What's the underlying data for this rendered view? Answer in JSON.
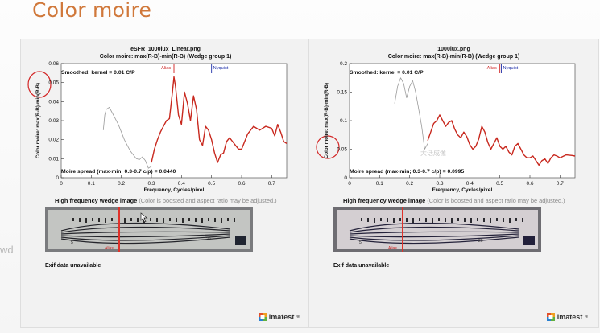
{
  "slide": {
    "title": "Color moire",
    "side_fragment": "wd"
  },
  "panels": [
    {
      "file": "eSFR_1000lux_Linear.png",
      "subtitle": "Color moire:  max(R-B)-min(R-B)  (Wedge group 1)",
      "smoothed": "Smoothed:  kernel = 0.01 C/P",
      "spread": "Moire spread (max-min; 0.3-0.7 c/p) = 0.0440",
      "alias_label": "Alias",
      "nyquist_label": "Nyquist",
      "wedge_title": "High frequency wedge image",
      "wedge_note": "(Color is boosted and aspect ratio may be adjusted.)",
      "wedge_alias": "Alias",
      "wedge_num_5": "5",
      "wedge_num_20": "20",
      "exif": "Exif data unavailable"
    },
    {
      "file": "1000lux.png",
      "subtitle": "Color moire:  max(R-B)-min(R-B)  (Wedge group 1)",
      "smoothed": "Smoothed:  kernel = 0.01 C/P",
      "spread": "Moire spread (max-min; 0.3-0.7 c/p) = 0.0995",
      "alias_label": "Alias",
      "nyquist_label": "Nyquist",
      "watermark": "大话成像",
      "wedge_title": "High frequency wedge image",
      "wedge_note": "(Color is boosted and aspect ratio may be adjusted.)",
      "wedge_alias": "Alias",
      "wedge_num_5": "5",
      "wedge_num_20": "20",
      "exif": "Exif data unavailable"
    }
  ],
  "logo": {
    "text": "imatest",
    "reg": "®"
  },
  "chart_data": [
    {
      "type": "line",
      "title": "eSFR_1000lux_Linear.png",
      "subtitle": "Color moire:  max(R-B)-min(R-B)  (Wedge group 1)",
      "xlabel": "Frequency, Cycles/pixel",
      "ylabel": "Color moire:  max(R-B)-min(R-B)",
      "xlim": [
        0,
        0.75
      ],
      "ylim": [
        0,
        0.06
      ],
      "xticks": [
        "0",
        "0.1",
        "0.2",
        "0.3",
        "0.4",
        "0.5",
        "0.6",
        "0.7"
      ],
      "yticks": [
        "0",
        "0.01",
        "0.02",
        "0.03",
        "0.04",
        "0.05",
        "0.06"
      ],
      "alias_x": 0.375,
      "nyquist_x": 0.5,
      "series": [
        {
          "name": "raw",
          "color": "#9a9a9a",
          "x": [
            0.14,
            0.145,
            0.15,
            0.16,
            0.17,
            0.18,
            0.19,
            0.2,
            0.21,
            0.22,
            0.23,
            0.24,
            0.25,
            0.26,
            0.27,
            0.28,
            0.29,
            0.3
          ],
          "values": [
            0.025,
            0.033,
            0.036,
            0.037,
            0.034,
            0.031,
            0.028,
            0.024,
            0.02,
            0.017,
            0.014,
            0.012,
            0.01,
            0.0095,
            0.011,
            0.009,
            0.005,
            0.006
          ]
        },
        {
          "name": "smoothed",
          "color": "#c8281e",
          "x": [
            0.3,
            0.31,
            0.32,
            0.33,
            0.34,
            0.35,
            0.36,
            0.37,
            0.375,
            0.38,
            0.39,
            0.4,
            0.41,
            0.42,
            0.43,
            0.44,
            0.45,
            0.46,
            0.47,
            0.48,
            0.49,
            0.5,
            0.51,
            0.52,
            0.53,
            0.54,
            0.55,
            0.56,
            0.57,
            0.58,
            0.59,
            0.6,
            0.62,
            0.64,
            0.66,
            0.68,
            0.7,
            0.71,
            0.72,
            0.73,
            0.74,
            0.75
          ],
          "values": [
            0.008,
            0.015,
            0.02,
            0.024,
            0.027,
            0.03,
            0.031,
            0.045,
            0.053,
            0.048,
            0.033,
            0.028,
            0.045,
            0.039,
            0.03,
            0.043,
            0.036,
            0.02,
            0.017,
            0.027,
            0.025,
            0.02,
            0.013,
            0.008,
            0.012,
            0.013,
            0.019,
            0.021,
            0.019,
            0.017,
            0.015,
            0.015,
            0.023,
            0.027,
            0.025,
            0.027,
            0.026,
            0.022,
            0.028,
            0.024,
            0.019,
            0.018
          ]
        }
      ]
    },
    {
      "type": "line",
      "title": "1000lux.png",
      "subtitle": "Color moire:  max(R-B)-min(R-B)  (Wedge group 1)",
      "xlabel": "Frequency, Cycles/pixel",
      "ylabel": "Color moire:  max(R-B)-min(R-B)",
      "xlim": [
        0,
        0.75
      ],
      "ylim": [
        0,
        0.2
      ],
      "xticks": [
        "0",
        "0.1",
        "0.2",
        "0.3",
        "0.4",
        "0.5",
        "0.6",
        "0.7"
      ],
      "yticks": [
        "0",
        "0.05",
        "0.1",
        "0.15",
        "0.2"
      ],
      "alias_x": 0.5,
      "nyquist_x": 0.505,
      "series": [
        {
          "name": "raw",
          "color": "#9a9a9a",
          "x": [
            0.15,
            0.16,
            0.17,
            0.18,
            0.19,
            0.2,
            0.21,
            0.22,
            0.23,
            0.24,
            0.25,
            0.26
          ],
          "values": [
            0.13,
            0.16,
            0.175,
            0.165,
            0.14,
            0.16,
            0.17,
            0.15,
            0.12,
            0.09,
            0.05,
            0.06
          ]
        },
        {
          "name": "smoothed",
          "color": "#c8281e",
          "x": [
            0.26,
            0.27,
            0.28,
            0.29,
            0.3,
            0.31,
            0.32,
            0.33,
            0.34,
            0.35,
            0.36,
            0.37,
            0.38,
            0.39,
            0.4,
            0.41,
            0.42,
            0.43,
            0.44,
            0.45,
            0.46,
            0.47,
            0.48,
            0.49,
            0.5,
            0.51,
            0.52,
            0.53,
            0.54,
            0.55,
            0.56,
            0.57,
            0.58,
            0.59,
            0.6,
            0.61,
            0.62,
            0.63,
            0.64,
            0.65,
            0.66,
            0.67,
            0.68,
            0.69,
            0.7,
            0.72,
            0.74,
            0.75
          ],
          "values": [
            0.065,
            0.08,
            0.095,
            0.1,
            0.11,
            0.1,
            0.09,
            0.097,
            0.1,
            0.085,
            0.075,
            0.07,
            0.08,
            0.072,
            0.058,
            0.05,
            0.055,
            0.068,
            0.09,
            0.08,
            0.062,
            0.05,
            0.06,
            0.07,
            0.055,
            0.05,
            0.055,
            0.045,
            0.04,
            0.055,
            0.06,
            0.05,
            0.04,
            0.035,
            0.035,
            0.038,
            0.03,
            0.022,
            0.03,
            0.033,
            0.025,
            0.035,
            0.04,
            0.038,
            0.035,
            0.04,
            0.039,
            0.038
          ]
        }
      ]
    }
  ]
}
